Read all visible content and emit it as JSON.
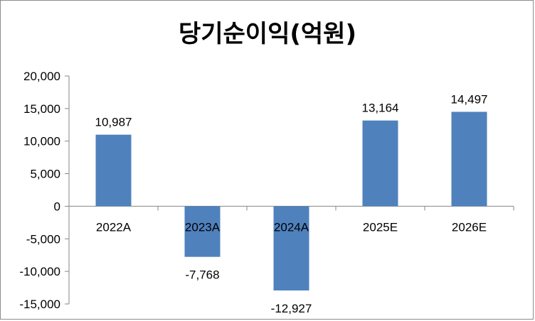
{
  "chart_data": {
    "type": "bar",
    "title": "당기순이익(억원)",
    "categories": [
      "2022A",
      "2023A",
      "2024A",
      "2025E",
      "2026E"
    ],
    "values": [
      10987,
      -7768,
      -12927,
      13164,
      14497
    ],
    "data_labels": [
      "10,987",
      "-7,768",
      "-12,927",
      "13,164",
      "14,497"
    ],
    "ylim": [
      -15000,
      20000
    ],
    "yticks": [
      20000,
      15000,
      10000,
      5000,
      0,
      -5000,
      -10000,
      -15000
    ],
    "ytick_labels": [
      "20,000",
      "15,000",
      "10,000",
      "5,000",
      "0",
      "-5,000",
      "-10,000",
      "-15,000"
    ],
    "bar_color": "#4f81bd",
    "grid": false,
    "legend": "none"
  }
}
